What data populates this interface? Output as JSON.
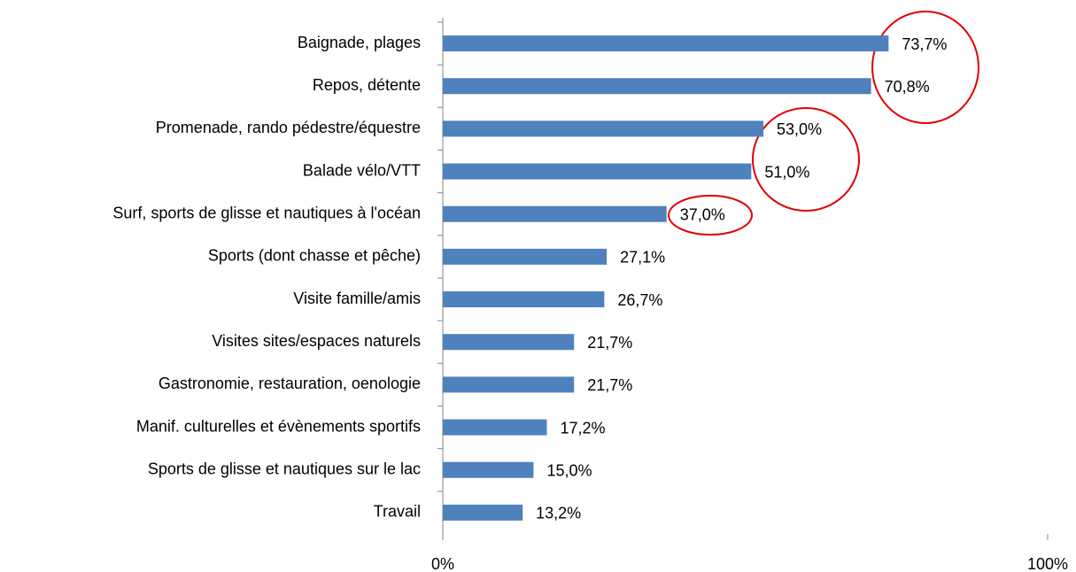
{
  "chart_data": {
    "type": "bar",
    "orientation": "horizontal",
    "color": "#4f81bd",
    "categories": [
      "Baignade, plages",
      "Repos, détente",
      "Promenade, rando pédestre/équestre",
      "Balade vélo/VTT",
      "Surf, sports de glisse et nautiques à l'océan",
      "Sports (dont chasse et pêche)",
      "Visite famille/amis",
      "Visites sites/espaces naturels",
      "Gastronomie, restauration, oenologie",
      "Manif. culturelles et évènements sportifs",
      "Sports de glisse et nautiques sur le lac",
      "Travail"
    ],
    "values": [
      73.7,
      70.8,
      53.0,
      51.0,
      37.0,
      27.1,
      26.7,
      21.7,
      21.7,
      17.2,
      15.0,
      13.2
    ],
    "value_labels": [
      "73,7%",
      "70,8%",
      "53,0%",
      "51,0%",
      "37,0%",
      "27,1%",
      "26,7%",
      "21,7%",
      "21,7%",
      "17,2%",
      "15,0%",
      "13,2%"
    ],
    "xlim": [
      0,
      100
    ],
    "xticks": [
      {
        "value": 0,
        "label": "0%"
      },
      {
        "value": 100,
        "label": "100%"
      }
    ]
  }
}
